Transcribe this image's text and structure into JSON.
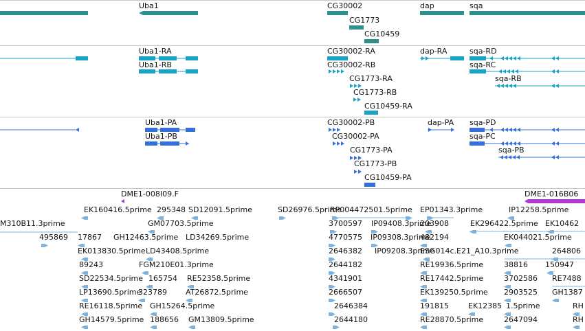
{
  "colors": {
    "gene": "#2f8f8b",
    "transcript": "#1aa3c8",
    "cds": "#3570d8",
    "dme": "#b03ccc",
    "est": "#7eb2dc",
    "divider": "#c9c9c9"
  },
  "tracks": {
    "genes": {
      "label_uba1": "Uba1",
      "label_cg30002": "CG30002",
      "label_cg1773": "CG1773",
      "label_cg10459": "CG10459",
      "label_dap": "dap",
      "label_sqa": "sqa"
    },
    "transcripts": {
      "uba1_ra": "Uba1-RA",
      "uba1_rb": "Uba1-RB",
      "cg30002_ra": "CG30002-RA",
      "cg30002_rb": "CG30002-RB",
      "cg1773_ra": "CG1773-RA",
      "cg1773_rb": "CG1773-RB",
      "cg10459_ra": "CG10459-RA",
      "dap_ra": "dap-RA",
      "sqa_rd": "sqa-RD",
      "sqa_rc": "sqa-RC",
      "sqa_rb": "sqa-RB"
    },
    "cds": {
      "uba1_pa": "Uba1-PA",
      "uba1_pb": "Uba1-PB",
      "cg30002_pb": "CG30002-PB",
      "cg30002_pa": "CG30002-PA",
      "cg1773_pa": "CG1773-PA",
      "cg1773_pb": "CG1773-PB",
      "cg10459_pa": "CG10459-PA",
      "dap_pa": "dap-PA",
      "sqa_pd": "sqa-PD",
      "sqa_pc": "sqa-PC",
      "sqa_pb": "sqa-PB"
    },
    "dme": {
      "dme1_008i09": "DME1-008I09.F",
      "dme1_016b06": "DME1-016B06"
    },
    "ests": [
      "EK160416.5prime",
      "295348",
      "SD12091.5prime",
      "SD26976.5prime",
      "RP004472501.5prime",
      "EP01343.3prime",
      "IP12258.5prime",
      "M310B11.3prime",
      "GM07703.5prime",
      "3700597",
      "IP09408.3prime",
      "203908",
      "EK296422.5prime",
      "EK10462",
      "495869",
      "17867",
      "GH12463.5prime",
      "LD34269.5prime",
      "4770575",
      "IP09308.3prime",
      "482194",
      "EK044021.5prime",
      "EK013830.5prime",
      "LD43408.5prime",
      "2646382",
      "IP09208.3prime",
      "ESG014c.E21_A10.3prime",
      "264806",
      "89243",
      "FGM210E01.3prime",
      "2644182",
      "RE19936.5prime",
      "38816",
      "150947",
      "SD22534.5prime",
      "165754",
      "RE52358.5prime",
      "4341901",
      "RE17442.5prime",
      "3702586",
      "RE7488",
      "LP13690.5prime",
      "323789",
      "AT26872.5prime",
      "2666507",
      "EK139250.5prime",
      "2903525",
      "GH1387",
      "RE16118.5prime",
      "GH15264.5prime",
      "2646384",
      "191815",
      "EK12385",
      "1.5prime",
      "RH",
      "GH14579.5prime",
      "188656",
      "GM13809.5prime",
      "2644180",
      "RE28870.5prime",
      "2647094",
      "RH"
    ]
  }
}
